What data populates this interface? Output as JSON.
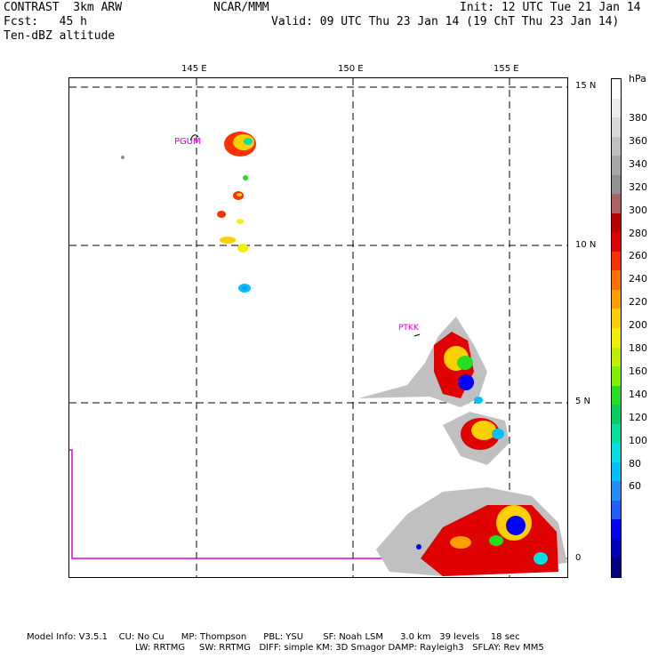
{
  "header": {
    "model": "CONTRAST  3km ARW",
    "org": "NCAR/MMM",
    "init": "Init: 12 UTC Tue 21 Jan 14",
    "fcst": "Fcst:   45 h",
    "valid": "Valid: 09 UTC Thu 23 Jan 14 (19 ChT Thu 23 Jan 14)",
    "field": "Ten-dBZ altitude"
  },
  "axes": {
    "lon_labels": [
      "145 E",
      "150 E",
      "155 E"
    ],
    "lat_labels": [
      "15 N",
      "10 N",
      "5 N",
      "0"
    ]
  },
  "stations": [
    "PGUM",
    "PTKK"
  ],
  "colorbar": {
    "unit": "hPa",
    "labels": [
      "380",
      "360",
      "340",
      "320",
      "300",
      "280",
      "260",
      "240",
      "220",
      "200",
      "180",
      "160",
      "140",
      "120",
      "100",
      "80",
      "60"
    ],
    "colors": [
      "#000080",
      "#0000c0",
      "#0000ff",
      "#2060ff",
      "#2090ff",
      "#00c0ff",
      "#00e0e0",
      "#00e0a0",
      "#00d060",
      "#20e020",
      "#80f000",
      "#c0f000",
      "#f0f000",
      "#ffd000",
      "#ffa000",
      "#ff7000",
      "#ff3000",
      "#e00000",
      "#c00000",
      "#b06060",
      "#909090",
      "#a8a8a8",
      "#c0c0c0",
      "#d8d8d8",
      "#ececec",
      "#ffffff"
    ]
  },
  "footer": {
    "line1": "Model Info: V3.5.1    CU: No Cu      MP: Thompson      PBL: YSU       SF: Noah LSM      3.0 km   39 levels    18 sec",
    "line2": "LW: RRTMG     SW: RRTMG   DIFF: simple KM: 3D Smagor DAMP: Rayleigh3   SFLAY: Rev MM5"
  }
}
